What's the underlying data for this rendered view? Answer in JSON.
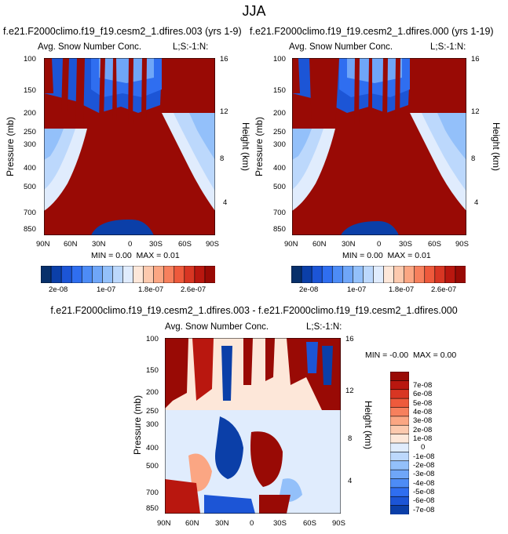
{
  "page_title": "JJA",
  "chart_data": [
    {
      "type": "heatmap",
      "subtitle": "f.e21.F2000climo.f19_f19.cesm2_1.dfires.003 (yrs 1-9)",
      "title": "Avg. Snow Number Conc.",
      "corner_label": "L;S:-1:N:",
      "xlabel": "",
      "ylabel": "Pressure (mb)",
      "ylabel_right": "Height (km)",
      "x_ticks": [
        "90N",
        "60N",
        "30N",
        "0",
        "30S",
        "60S",
        "90S"
      ],
      "y_ticks": [
        "100",
        "150",
        "200",
        "250",
        "300",
        "400",
        "500",
        "700",
        "850"
      ],
      "y_ticks_right": [
        "16",
        "12",
        "8",
        "4"
      ],
      "min_label": "MIN =",
      "min_value": "0.00",
      "max_label": "MAX =",
      "max_value": "0.01",
      "colorbar_labels": [
        "2e-08",
        "1e-07",
        "1.8e-07",
        "2.6e-07"
      ],
      "colors": [
        "#08306b",
        "#0b3fa8",
        "#1c55d6",
        "#2f6ef0",
        "#4d8cf6",
        "#6fa6f8",
        "#93c0fa",
        "#bcd8fc",
        "#e0ecfd",
        "#fde7d9",
        "#fcc9ae",
        "#fba683",
        "#f7805d",
        "#ee5a3c",
        "#d83623",
        "#b9170f",
        "#990a05"
      ]
    },
    {
      "type": "heatmap",
      "subtitle": "f.e21.F2000climo.f19_f19.cesm2_1.dfires.000 (yrs 1-19)",
      "title": "Avg. Snow Number Conc.",
      "corner_label": "L;S:-1:N:",
      "xlabel": "",
      "ylabel": "Pressure (mb)",
      "ylabel_right": "Height (km)",
      "x_ticks": [
        "90N",
        "60N",
        "30N",
        "0",
        "30S",
        "60S",
        "90S"
      ],
      "y_ticks": [
        "100",
        "150",
        "200",
        "250",
        "300",
        "400",
        "500",
        "700",
        "850"
      ],
      "y_ticks_right": [
        "16",
        "12",
        "8",
        "4"
      ],
      "min_label": "MIN =",
      "min_value": "0.00",
      "max_label": "MAX =",
      "max_value": "0.01",
      "colorbar_labels": [
        "2e-08",
        "1e-07",
        "1.8e-07",
        "2.6e-07"
      ]
    },
    {
      "type": "heatmap",
      "subtitle": "f.e21.F2000climo.f19_f19.cesm2_1.dfires.003 - f.e21.F2000climo.f19_f19.cesm2_1.dfires.000",
      "title": "Avg. Snow Number Conc.",
      "corner_label": "L;S:-1:N:",
      "ylabel": "Pressure (mb)",
      "ylabel_right": "Height (km)",
      "x_ticks": [
        "90N",
        "60N",
        "30N",
        "0",
        "30S",
        "60S",
        "90S"
      ],
      "y_ticks": [
        "100",
        "150",
        "200",
        "250",
        "300",
        "400",
        "500",
        "700",
        "850"
      ],
      "y_ticks_right": [
        "16",
        "12",
        "8",
        "4"
      ],
      "min_label": "MIN =",
      "min_value": "-0.00",
      "max_label": "MAX =",
      "max_value": "0.00",
      "colorbar_labels": [
        "7e-08",
        "6e-08",
        "5e-08",
        "4e-08",
        "3e-08",
        "2e-08",
        "1e-08",
        "0",
        "-1e-08",
        "-2e-08",
        "-3e-08",
        "-4e-08",
        "-5e-08",
        "-6e-08",
        "-7e-08"
      ],
      "colors": [
        "#990a05",
        "#b9170f",
        "#d83623",
        "#ee5a3c",
        "#f7805d",
        "#fba683",
        "#fcc9ae",
        "#fde7d9",
        "#e0ecfd",
        "#bcd8fc",
        "#93c0fa",
        "#6fa6f8",
        "#4d8cf6",
        "#2f6ef0",
        "#1c55d6",
        "#0b3fa8"
      ]
    }
  ]
}
